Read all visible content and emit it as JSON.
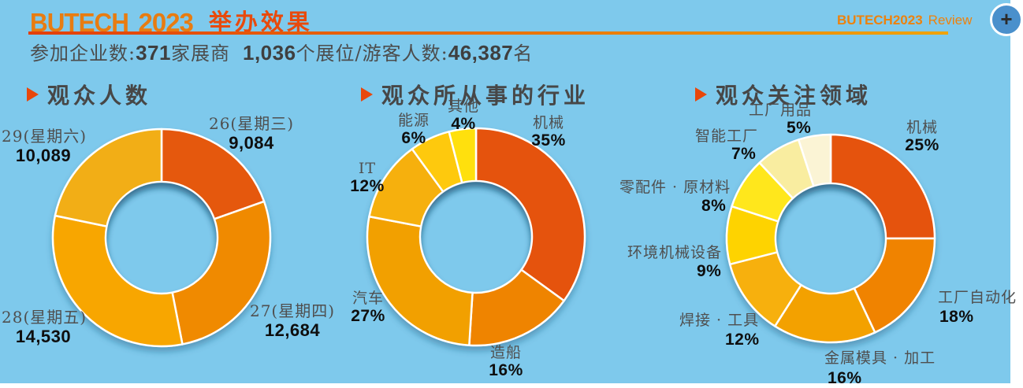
{
  "page": {
    "background": "#7ec9ec"
  },
  "header": {
    "logo_brand": "BUTECH",
    "logo_year": "2023",
    "logo_title": "举办效果",
    "review_brand": "BUTECH",
    "review_year": "2023",
    "review_label": "Review",
    "accent_color": "#e8470b"
  },
  "stats": {
    "part1": "参加企业数:",
    "num1": "371",
    "part2": "家展商",
    "num2": "1,036",
    "part3": "个展位/游客人数:",
    "num3": "46,387",
    "part4": "名"
  },
  "zoom_button": {
    "symbol": "+"
  },
  "sections": [
    {
      "title": "观众人数"
    },
    {
      "title": "观众所从事的行业"
    },
    {
      "title": "观众关注领域"
    }
  ],
  "chart_data": [
    {
      "type": "donut",
      "title": "观众人数",
      "start_angle_deg": 0,
      "direction": "clockwise",
      "total": 46387,
      "slices": [
        {
          "label": "26(星期三)",
          "value": 9084,
          "display": "9,084",
          "color": "#e5590d"
        },
        {
          "label": "27(星期四)",
          "value": 12684,
          "display": "12,684",
          "color": "#f08a00"
        },
        {
          "label": "28(星期五)",
          "value": 14530,
          "display": "14,530",
          "color": "#f8a603"
        },
        {
          "label": "29(星期六)",
          "value": 10089,
          "display": "10,089",
          "color": "#f2ae19"
        }
      ]
    },
    {
      "type": "donut",
      "title": "观众所从事的行业",
      "start_angle_deg": 0,
      "direction": "clockwise",
      "total": 100,
      "slices": [
        {
          "label": "机械",
          "value": 35,
          "display": "35%",
          "color": "#e5530c"
        },
        {
          "label": "造船",
          "value": 16,
          "display": "16%",
          "color": "#ef8402"
        },
        {
          "label": "汽车",
          "value": 27,
          "display": "27%",
          "color": "#f2a005"
        },
        {
          "label": "IT",
          "value": 12,
          "display": "12%",
          "color": "#f6b011"
        },
        {
          "label": "能源",
          "value": 6,
          "display": "6%",
          "color": "#fec907"
        },
        {
          "label": "其他",
          "value": 4,
          "display": "4%",
          "color": "#ffe00e"
        }
      ]
    },
    {
      "type": "donut",
      "title": "观众关注领域",
      "start_angle_deg": 0,
      "direction": "clockwise",
      "total": 100,
      "slices": [
        {
          "label": "机械",
          "value": 25,
          "display": "25%",
          "color": "#e5520c"
        },
        {
          "label": "工厂自动化",
          "value": 18,
          "display": "18%",
          "color": "#f08300"
        },
        {
          "label": "金属模具 · 加工",
          "value": 16,
          "display": "16%",
          "color": "#f3a105"
        },
        {
          "label": "焊接 · 工具",
          "value": 12,
          "display": "12%",
          "color": "#f7b00c"
        },
        {
          "label": "环境机械设备",
          "value": 9,
          "display": "9%",
          "color": "#fed303"
        },
        {
          "label": "零配件 · 原材料",
          "value": 8,
          "display": "8%",
          "color": "#ffe71c"
        },
        {
          "label": "智能工厂",
          "value": 7,
          "display": "7%",
          "color": "#f9eda0"
        },
        {
          "label": "工厂用品",
          "value": 5,
          "display": "5%",
          "color": "#fbf4d5"
        }
      ]
    }
  ]
}
